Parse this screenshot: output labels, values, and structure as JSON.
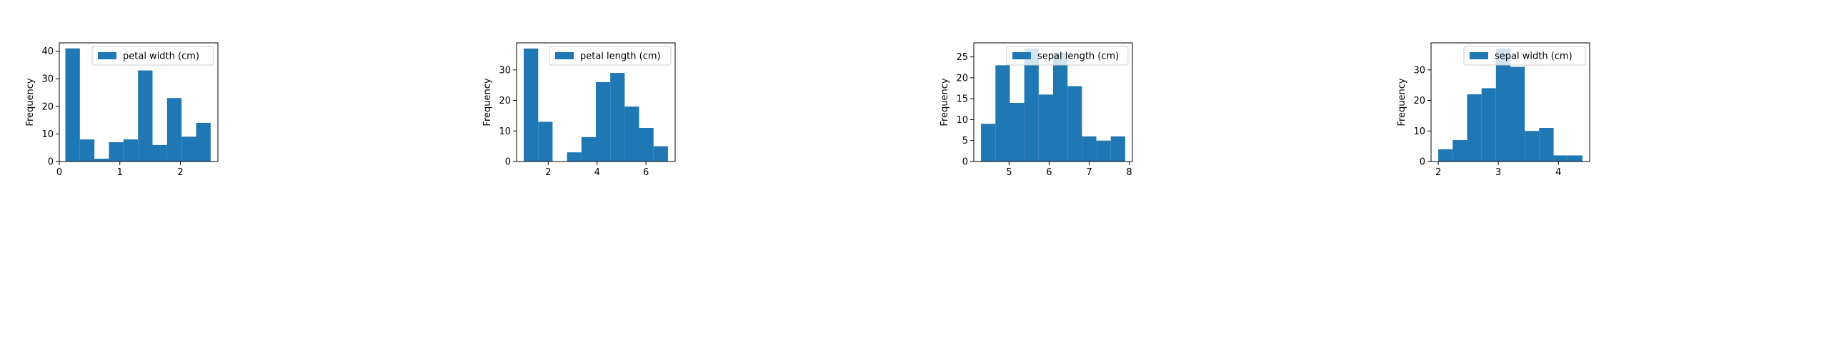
{
  "colors": {
    "bar": "#1f77b4",
    "axis": "#000000",
    "legend_border": "#cccccc"
  },
  "chart_data": [
    {
      "type": "bar",
      "title": "",
      "xlabel": "",
      "ylabel": "Frequency",
      "legend": [
        "petal width (cm)"
      ],
      "legend_position": "top-right",
      "grid": false,
      "xlim": [
        0.0,
        2.62
      ],
      "ylim": [
        0,
        43
      ],
      "xticks": [
        0,
        1,
        2
      ],
      "yticks": [
        0,
        10,
        20,
        30,
        40
      ],
      "series": [
        {
          "name": "petal width (cm)",
          "bin_edges": [
            0.1,
            0.34,
            0.58,
            0.82,
            1.06,
            1.3,
            1.54,
            1.78,
            2.02,
            2.26,
            2.5
          ],
          "values": [
            41,
            8,
            1,
            7,
            8,
            33,
            6,
            23,
            9,
            14
          ]
        }
      ]
    },
    {
      "type": "bar",
      "title": "",
      "xlabel": "",
      "ylabel": "Frequency",
      "legend": [
        "petal length (cm)"
      ],
      "legend_position": "top-right",
      "grid": false,
      "xlim": [
        0.705,
        7.195
      ],
      "ylim": [
        0,
        38.85
      ],
      "xticks": [
        2,
        4,
        6
      ],
      "yticks": [
        0,
        10,
        20,
        30
      ],
      "series": [
        {
          "name": "petal length (cm)",
          "bin_edges": [
            1.0,
            1.59,
            2.18,
            2.77,
            3.36,
            3.95,
            4.54,
            5.13,
            5.72,
            6.31,
            6.9
          ],
          "values": [
            37,
            13,
            0,
            3,
            8,
            26,
            29,
            18,
            11,
            5
          ]
        }
      ]
    },
    {
      "type": "bar",
      "title": "",
      "xlabel": "",
      "ylabel": "Frequency",
      "legend": [
        "sepal length (cm)"
      ],
      "legend_position": "top-right",
      "grid": false,
      "xlim": [
        4.12,
        8.08
      ],
      "ylim": [
        0,
        28.35
      ],
      "xticks": [
        5,
        6,
        7,
        8
      ],
      "yticks": [
        0,
        5,
        10,
        15,
        20,
        25
      ],
      "series": [
        {
          "name": "sepal length (cm)",
          "bin_edges": [
            4.3,
            4.66,
            5.02,
            5.38,
            5.74,
            6.1,
            6.46,
            6.82,
            7.18,
            7.54,
            7.9
          ],
          "values": [
            9,
            23,
            14,
            27,
            16,
            26,
            18,
            6,
            5,
            6
          ]
        }
      ]
    },
    {
      "type": "bar",
      "title": "",
      "xlabel": "",
      "ylabel": "Frequency",
      "legend": [
        "sepal width (cm)"
      ],
      "legend_position": "top-right",
      "grid": false,
      "xlim": [
        1.88,
        4.52
      ],
      "ylim": [
        0,
        38.85
      ],
      "xticks": [
        2,
        3,
        4
      ],
      "yticks": [
        0,
        10,
        20,
        30
      ],
      "series": [
        {
          "name": "sepal width (cm)",
          "bin_edges": [
            2.0,
            2.24,
            2.48,
            2.72,
            2.96,
            3.2,
            3.44,
            3.68,
            3.92,
            4.16,
            4.4
          ],
          "values": [
            4,
            7,
            22,
            24,
            37,
            31,
            10,
            11,
            2,
            2
          ]
        }
      ]
    }
  ]
}
